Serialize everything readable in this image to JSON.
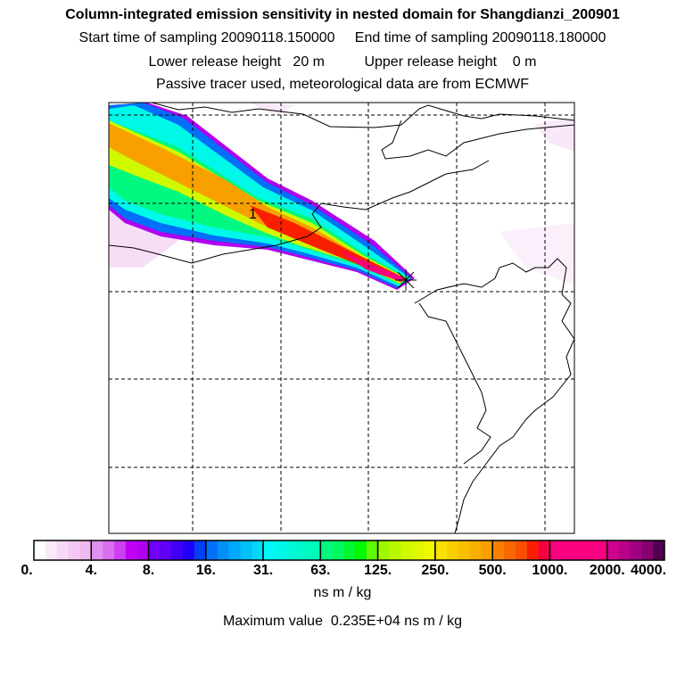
{
  "header": {
    "title": "Column-integrated emission sensitivity in nested domain for Shangdianzi_200901",
    "line2": "Start time of sampling 20090118.150000     End time of sampling 20090118.180000",
    "line3": "Lower release height   20 m          Upper release height    0 m",
    "line4": "Passive tracer used, meteorological data are from ECMWF"
  },
  "map": {
    "label": "1",
    "release_site_marker": "star-icon"
  },
  "colorbar": {
    "tick_labels": [
      "0.",
      "4.",
      "8.",
      "16.",
      "31.",
      "63.",
      "125.",
      "250.",
      "500.",
      "1000.",
      "2000.",
      "4000."
    ],
    "segments": [
      [
        "#ffffff",
        "#fbe8fb",
        "#f8d8f8",
        "#f4c8f4",
        "#f0b8f0"
      ],
      [
        "#e090f0",
        "#d870f0",
        "#cc40f0",
        "#c000f8",
        "#b000f0"
      ],
      [
        "#7000f8",
        "#6000f8",
        "#4000f8",
        "#2000f8",
        "#0040f8"
      ],
      [
        "#0070f8",
        "#0090f8",
        "#00a8f8",
        "#00c0f8",
        "#00d8f8"
      ],
      [
        "#00f8f8",
        "#00f8e8",
        "#00f8d8",
        "#00f8c8",
        "#00f8b8"
      ],
      [
        "#00f880",
        "#00f860",
        "#00f830",
        "#00f800",
        "#60f800"
      ],
      [
        "#a0f800",
        "#b8f800",
        "#d0f800",
        "#e0f800",
        "#f0f800"
      ],
      [
        "#f8e000",
        "#f8d000",
        "#f8c000",
        "#f8b000",
        "#f8a000"
      ],
      [
        "#f88000",
        "#f86800",
        "#f85000",
        "#f82000",
        "#f80040"
      ],
      [
        "#f80080",
        "#f80080",
        "#f80080",
        "#f80080",
        "#f80080"
      ],
      [
        "#d00090",
        "#b80088",
        "#a00080",
        "#880070",
        "#500050"
      ]
    ],
    "units": "ns m / kg",
    "max_value": "Maximum value  0.235E+04 ns m / kg"
  }
}
